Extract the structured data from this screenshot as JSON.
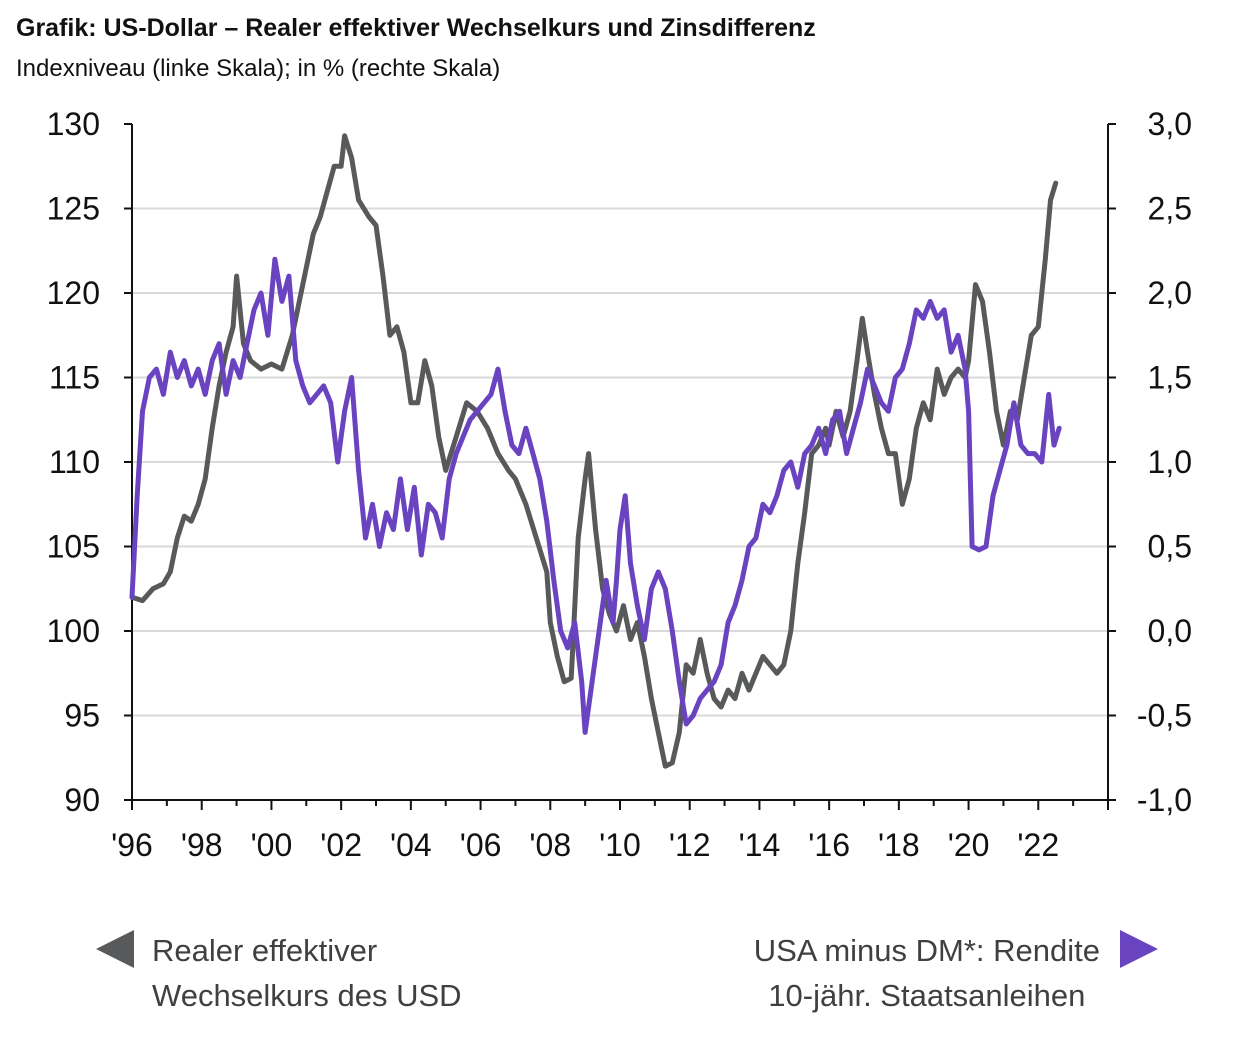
{
  "title": "Grafik: US-Dollar – Realer effektiver Wechselkurs und Zinsdifferenz",
  "subtitle": "Indexniveau (linke Skala); in % (rechte Skala)",
  "colors": {
    "usd": "#57595b",
    "spread": "#6a44c0",
    "grid": "#d9d9d9",
    "axis": "#111111"
  },
  "legend": {
    "left": {
      "icon": "triangle-left-icon",
      "line1": "Realer effektiver",
      "line2": "Wechselkurs des USD"
    },
    "right": {
      "icon": "triangle-right-icon",
      "line1": "USA minus DM*: Rendite",
      "line2": "10-jähr. Staatsanleihen"
    }
  },
  "chart_data": {
    "type": "line",
    "title": "Grafik: US-Dollar – Realer effektiver Wechselkurs und Zinsdifferenz",
    "subtitle": "Indexniveau (linke Skala); in % (rechte Skala)",
    "x_tick_labels": [
      "'96",
      "'98",
      "'00",
      "'02",
      "'04",
      "'06",
      "'08",
      "'10",
      "'12",
      "'14",
      "'16",
      "'18",
      "'20",
      "'22"
    ],
    "x_range": [
      1996,
      2024
    ],
    "y_left": {
      "min": 90,
      "max": 130,
      "ticks": [
        "90",
        "95",
        "100",
        "105",
        "110",
        "115",
        "120",
        "125",
        "130"
      ]
    },
    "y_right": {
      "min": -1.0,
      "max": 3.0,
      "ticks": [
        "-1,0",
        "-0,5",
        "0,0",
        "0,5",
        "1,0",
        "1,5",
        "2,0",
        "2,5",
        "3,0"
      ]
    },
    "grid": true,
    "legend_position": "bottom",
    "series": [
      {
        "name": "Realer effektiver Wechselkurs des USD",
        "axis": "left",
        "points": [
          [
            1996.0,
            102
          ],
          [
            1996.3,
            101.8
          ],
          [
            1996.6,
            102.5
          ],
          [
            1996.9,
            102.8
          ],
          [
            1997.1,
            103.5
          ],
          [
            1997.3,
            105.5
          ],
          [
            1997.5,
            106.8
          ],
          [
            1997.7,
            106.5
          ],
          [
            1997.9,
            107.5
          ],
          [
            1998.1,
            109
          ],
          [
            1998.3,
            112
          ],
          [
            1998.5,
            114.5
          ],
          [
            1998.7,
            116.5
          ],
          [
            1998.9,
            118
          ],
          [
            1999.0,
            121
          ],
          [
            1999.2,
            117
          ],
          [
            1999.4,
            116
          ],
          [
            1999.7,
            115.5
          ],
          [
            2000.0,
            115.8
          ],
          [
            2000.3,
            115.5
          ],
          [
            2000.6,
            117.5
          ],
          [
            2000.8,
            119.5
          ],
          [
            2001.0,
            121.5
          ],
          [
            2001.2,
            123.5
          ],
          [
            2001.4,
            124.5
          ],
          [
            2001.6,
            126
          ],
          [
            2001.8,
            127.5
          ],
          [
            2002.0,
            127.5
          ],
          [
            2002.1,
            129.3
          ],
          [
            2002.3,
            128
          ],
          [
            2002.5,
            125.5
          ],
          [
            2002.8,
            124.5
          ],
          [
            2003.0,
            124
          ],
          [
            2003.2,
            121
          ],
          [
            2003.4,
            117.5
          ],
          [
            2003.6,
            118
          ],
          [
            2003.8,
            116.5
          ],
          [
            2004.0,
            113.5
          ],
          [
            2004.2,
            113.5
          ],
          [
            2004.4,
            116
          ],
          [
            2004.6,
            114.5
          ],
          [
            2004.8,
            111.5
          ],
          [
            2005.0,
            109.5
          ],
          [
            2005.3,
            111.5
          ],
          [
            2005.6,
            113.5
          ],
          [
            2005.9,
            113
          ],
          [
            2006.2,
            112
          ],
          [
            2006.5,
            110.5
          ],
          [
            2006.8,
            109.5
          ],
          [
            2007.0,
            109
          ],
          [
            2007.3,
            107.5
          ],
          [
            2007.6,
            105.5
          ],
          [
            2007.9,
            103.5
          ],
          [
            2008.0,
            100.5
          ],
          [
            2008.2,
            98.5
          ],
          [
            2008.4,
            97
          ],
          [
            2008.6,
            97.2
          ],
          [
            2008.8,
            105.5
          ],
          [
            2009.0,
            109
          ],
          [
            2009.1,
            110.5
          ],
          [
            2009.3,
            106
          ],
          [
            2009.5,
            102.5
          ],
          [
            2009.7,
            101
          ],
          [
            2009.9,
            100
          ],
          [
            2010.1,
            101.5
          ],
          [
            2010.3,
            99.5
          ],
          [
            2010.5,
            100.5
          ],
          [
            2010.7,
            98.5
          ],
          [
            2010.9,
            96
          ],
          [
            2011.1,
            94
          ],
          [
            2011.3,
            92
          ],
          [
            2011.5,
            92.2
          ],
          [
            2011.7,
            94
          ],
          [
            2011.9,
            98
          ],
          [
            2012.1,
            97.5
          ],
          [
            2012.3,
            99.5
          ],
          [
            2012.5,
            97.5
          ],
          [
            2012.7,
            96
          ],
          [
            2012.9,
            95.5
          ],
          [
            2013.1,
            96.5
          ],
          [
            2013.3,
            96
          ],
          [
            2013.5,
            97.5
          ],
          [
            2013.7,
            96.5
          ],
          [
            2013.9,
            97.5
          ],
          [
            2014.1,
            98.5
          ],
          [
            2014.3,
            98
          ],
          [
            2014.5,
            97.5
          ],
          [
            2014.7,
            98
          ],
          [
            2014.9,
            100
          ],
          [
            2015.1,
            104
          ],
          [
            2015.3,
            107
          ],
          [
            2015.5,
            110.5
          ],
          [
            2015.7,
            111
          ],
          [
            2015.9,
            112
          ],
          [
            2016.0,
            111
          ],
          [
            2016.2,
            113
          ],
          [
            2016.4,
            111.5
          ],
          [
            2016.6,
            113
          ],
          [
            2016.8,
            116
          ],
          [
            2016.95,
            118.5
          ],
          [
            2017.1,
            116.5
          ],
          [
            2017.3,
            114
          ],
          [
            2017.5,
            112
          ],
          [
            2017.7,
            110.5
          ],
          [
            2017.9,
            110.5
          ],
          [
            2018.1,
            107.5
          ],
          [
            2018.3,
            109
          ],
          [
            2018.5,
            112
          ],
          [
            2018.7,
            113.5
          ],
          [
            2018.9,
            112.5
          ],
          [
            2019.1,
            115.5
          ],
          [
            2019.3,
            114
          ],
          [
            2019.5,
            115
          ],
          [
            2019.7,
            115.5
          ],
          [
            2019.9,
            115
          ],
          [
            2020.0,
            116
          ],
          [
            2020.2,
            120.5
          ],
          [
            2020.4,
            119.5
          ],
          [
            2020.6,
            116.5
          ],
          [
            2020.8,
            113
          ],
          [
            2021.0,
            111
          ],
          [
            2021.2,
            113
          ],
          [
            2021.4,
            112.5
          ],
          [
            2021.6,
            115
          ],
          [
            2021.8,
            117.5
          ],
          [
            2022.0,
            118
          ],
          [
            2022.2,
            122
          ],
          [
            2022.35,
            125.5
          ],
          [
            2022.5,
            126.5
          ]
        ]
      },
      {
        "name": "USA minus DM*: Rendite 10-jähr. Staatsanleihen",
        "axis": "right",
        "points": [
          [
            1996.0,
            0.2
          ],
          [
            1996.15,
            0.8
          ],
          [
            1996.3,
            1.3
          ],
          [
            1996.5,
            1.5
          ],
          [
            1996.7,
            1.55
          ],
          [
            1996.9,
            1.4
          ],
          [
            1997.1,
            1.65
          ],
          [
            1997.3,
            1.5
          ],
          [
            1997.5,
            1.6
          ],
          [
            1997.7,
            1.45
          ],
          [
            1997.9,
            1.55
          ],
          [
            1998.1,
            1.4
          ],
          [
            1998.3,
            1.6
          ],
          [
            1998.5,
            1.7
          ],
          [
            1998.7,
            1.4
          ],
          [
            1998.9,
            1.6
          ],
          [
            1999.1,
            1.5
          ],
          [
            1999.3,
            1.7
          ],
          [
            1999.5,
            1.9
          ],
          [
            1999.7,
            2.0
          ],
          [
            1999.9,
            1.75
          ],
          [
            2000.1,
            2.2
          ],
          [
            2000.3,
            1.95
          ],
          [
            2000.5,
            2.1
          ],
          [
            2000.7,
            1.6
          ],
          [
            2000.9,
            1.45
          ],
          [
            2001.1,
            1.35
          ],
          [
            2001.3,
            1.4
          ],
          [
            2001.5,
            1.45
          ],
          [
            2001.7,
            1.35
          ],
          [
            2001.9,
            1.0
          ],
          [
            2002.1,
            1.3
          ],
          [
            2002.3,
            1.5
          ],
          [
            2002.5,
            0.95
          ],
          [
            2002.7,
            0.55
          ],
          [
            2002.9,
            0.75
          ],
          [
            2003.1,
            0.5
          ],
          [
            2003.3,
            0.7
          ],
          [
            2003.5,
            0.6
          ],
          [
            2003.7,
            0.9
          ],
          [
            2003.9,
            0.6
          ],
          [
            2004.1,
            0.85
          ],
          [
            2004.3,
            0.45
          ],
          [
            2004.5,
            0.75
          ],
          [
            2004.7,
            0.7
          ],
          [
            2004.9,
            0.55
          ],
          [
            2005.1,
            0.9
          ],
          [
            2005.3,
            1.05
          ],
          [
            2005.5,
            1.15
          ],
          [
            2005.7,
            1.25
          ],
          [
            2005.9,
            1.3
          ],
          [
            2006.1,
            1.35
          ],
          [
            2006.3,
            1.4
          ],
          [
            2006.5,
            1.55
          ],
          [
            2006.7,
            1.3
          ],
          [
            2006.9,
            1.1
          ],
          [
            2007.1,
            1.05
          ],
          [
            2007.3,
            1.2
          ],
          [
            2007.5,
            1.05
          ],
          [
            2007.7,
            0.9
          ],
          [
            2007.9,
            0.65
          ],
          [
            2008.1,
            0.3
          ],
          [
            2008.3,
            0.0
          ],
          [
            2008.5,
            -0.1
          ],
          [
            2008.7,
            0.05
          ],
          [
            2008.9,
            -0.3
          ],
          [
            2009.0,
            -0.6
          ],
          [
            2009.2,
            -0.3
          ],
          [
            2009.4,
            0.0
          ],
          [
            2009.6,
            0.3
          ],
          [
            2009.8,
            0.05
          ],
          [
            2009.9,
            0.3
          ],
          [
            2010.0,
            0.6
          ],
          [
            2010.15,
            0.8
          ],
          [
            2010.3,
            0.4
          ],
          [
            2010.5,
            0.15
          ],
          [
            2010.7,
            -0.05
          ],
          [
            2010.9,
            0.25
          ],
          [
            2011.1,
            0.35
          ],
          [
            2011.3,
            0.25
          ],
          [
            2011.5,
            0.0
          ],
          [
            2011.7,
            -0.3
          ],
          [
            2011.9,
            -0.55
          ],
          [
            2012.1,
            -0.5
          ],
          [
            2012.3,
            -0.4
          ],
          [
            2012.5,
            -0.35
          ],
          [
            2012.7,
            -0.3
          ],
          [
            2012.9,
            -0.2
          ],
          [
            2013.1,
            0.05
          ],
          [
            2013.3,
            0.15
          ],
          [
            2013.5,
            0.3
          ],
          [
            2013.7,
            0.5
          ],
          [
            2013.9,
            0.55
          ],
          [
            2014.1,
            0.75
          ],
          [
            2014.3,
            0.7
          ],
          [
            2014.5,
            0.8
          ],
          [
            2014.7,
            0.95
          ],
          [
            2014.9,
            1.0
          ],
          [
            2015.1,
            0.85
          ],
          [
            2015.3,
            1.05
          ],
          [
            2015.5,
            1.1
          ],
          [
            2015.7,
            1.2
          ],
          [
            2015.9,
            1.05
          ],
          [
            2016.1,
            1.25
          ],
          [
            2016.3,
            1.3
          ],
          [
            2016.5,
            1.05
          ],
          [
            2016.7,
            1.2
          ],
          [
            2016.9,
            1.35
          ],
          [
            2017.1,
            1.55
          ],
          [
            2017.3,
            1.45
          ],
          [
            2017.5,
            1.35
          ],
          [
            2017.7,
            1.3
          ],
          [
            2017.9,
            1.5
          ],
          [
            2018.1,
            1.55
          ],
          [
            2018.3,
            1.7
          ],
          [
            2018.5,
            1.9
          ],
          [
            2018.7,
            1.85
          ],
          [
            2018.9,
            1.95
          ],
          [
            2019.1,
            1.85
          ],
          [
            2019.3,
            1.9
          ],
          [
            2019.5,
            1.65
          ],
          [
            2019.7,
            1.75
          ],
          [
            2019.9,
            1.55
          ],
          [
            2020.0,
            1.3
          ],
          [
            2020.1,
            0.5
          ],
          [
            2020.3,
            0.48
          ],
          [
            2020.5,
            0.5
          ],
          [
            2020.7,
            0.8
          ],
          [
            2020.9,
            0.95
          ],
          [
            2021.1,
            1.1
          ],
          [
            2021.3,
            1.35
          ],
          [
            2021.5,
            1.1
          ],
          [
            2021.7,
            1.05
          ],
          [
            2021.9,
            1.05
          ],
          [
            2022.1,
            1.0
          ],
          [
            2022.3,
            1.4
          ],
          [
            2022.45,
            1.1
          ],
          [
            2022.6,
            1.2
          ]
        ]
      }
    ]
  }
}
